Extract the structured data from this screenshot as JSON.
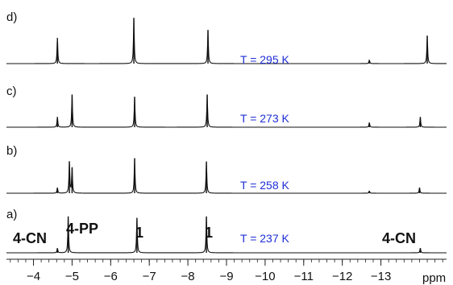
{
  "colors": {
    "spectrum": "#111111",
    "temperature": "#1f2fd6",
    "axis": "#222222"
  },
  "chart_data": {
    "type": "line",
    "x_unit": "ppm",
    "xlim": [
      -3.3,
      -14.7
    ],
    "x_ticks": [
      -4,
      -5,
      -6,
      -7,
      -8,
      -9,
      -10,
      -11,
      -12,
      -13
    ],
    "x_tick_labels": [
      "−4",
      "−5",
      "−6",
      "−7",
      "−8",
      "−9",
      "−10",
      "−11",
      "−12",
      "−13"
    ],
    "spectra": [
      {
        "panel": "d)",
        "temperature": "T = 295 K",
        "peaks": [
          {
            "x": -4.62,
            "height": 0.55
          },
          {
            "x": -6.6,
            "height": 0.98
          },
          {
            "x": -8.52,
            "height": 0.72
          },
          {
            "x": -12.7,
            "height": 0.08
          },
          {
            "x": -14.2,
            "height": 0.6
          }
        ]
      },
      {
        "panel": "c)",
        "temperature": "T = 273 K",
        "peaks": [
          {
            "x": -4.62,
            "height": 0.22
          },
          {
            "x": -5.0,
            "height": 0.7
          },
          {
            "x": -6.62,
            "height": 0.65
          },
          {
            "x": -8.5,
            "height": 0.7
          },
          {
            "x": -12.7,
            "height": 0.1
          },
          {
            "x": -14.02,
            "height": 0.22
          }
        ]
      },
      {
        "panel": "b)",
        "temperature": "T = 258 K",
        "peaks": [
          {
            "x": -4.62,
            "height": 0.12
          },
          {
            "x": -4.93,
            "height": 0.68
          },
          {
            "x": -5.0,
            "height": 0.55
          },
          {
            "x": -6.62,
            "height": 0.75
          },
          {
            "x": -8.48,
            "height": 0.68
          },
          {
            "x": -12.7,
            "height": 0.05
          },
          {
            "x": -14.0,
            "height": 0.12
          }
        ]
      },
      {
        "panel": "a)",
        "temperature": "T = 237 K",
        "peaks": [
          {
            "x": -4.62,
            "height": 0.1
          },
          {
            "x": -4.9,
            "height": 0.78
          },
          {
            "x": -6.68,
            "height": 0.75
          },
          {
            "x": -8.48,
            "height": 0.78
          },
          {
            "x": -14.02,
            "height": 0.1
          }
        ]
      }
    ],
    "annotations": [
      "4-CN",
      "4-PP",
      "1",
      "1",
      "4-CN"
    ]
  }
}
